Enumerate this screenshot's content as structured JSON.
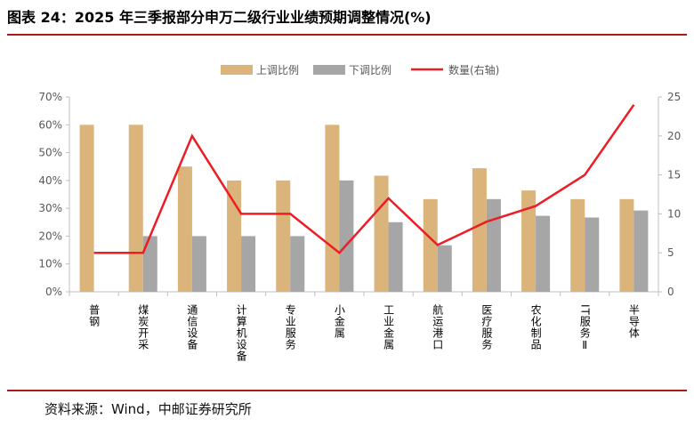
{
  "header": {
    "title": "图表 24：2025 年三季报部分申万二级行业业绩预期调整情况(%)"
  },
  "footer": {
    "source": "资料来源：Wind，中邮证券研究所"
  },
  "colors": {
    "up": "#dab47a",
    "down": "#a6a6a6",
    "line": "#ee1c25",
    "rule": "#a81b1b",
    "axis": "#bfbfbf",
    "text": "#595959"
  },
  "chart_data": {
    "type": "bar",
    "categories": [
      "普钢",
      "煤炭开采",
      "通信设备",
      "计算机设备",
      "专业服务",
      "小金属",
      "工业金属",
      "航运港口",
      "医疗服务",
      "农化制品",
      "IT服务Ⅱ",
      "半导体"
    ],
    "series": [
      {
        "name": "上调比例",
        "type": "bar",
        "axis": "left",
        "values": [
          60,
          60,
          45,
          40,
          40,
          60,
          41.7,
          33.3,
          44.4,
          36.4,
          33.3,
          33.3
        ]
      },
      {
        "name": "下调比例",
        "type": "bar",
        "axis": "left",
        "values": [
          0,
          20,
          20,
          20,
          20,
          40,
          25,
          16.7,
          33.3,
          27.3,
          26.7,
          29.2
        ]
      },
      {
        "name": "数量(右轴)",
        "type": "line",
        "axis": "right",
        "values": [
          5,
          5,
          20,
          10,
          10,
          5,
          12,
          6,
          9,
          11,
          15,
          24
        ]
      }
    ],
    "y_left": {
      "min": 0,
      "max": 70,
      "step": 10,
      "tick_labels": [
        "0%",
        "10%",
        "20%",
        "30%",
        "40%",
        "50%",
        "60%",
        "70%"
      ]
    },
    "y_right": {
      "min": 0,
      "max": 25,
      "step": 5,
      "tick_labels": [
        "0",
        "5",
        "10",
        "15",
        "20",
        "25"
      ]
    },
    "grid": false,
    "legend_position": "top"
  }
}
